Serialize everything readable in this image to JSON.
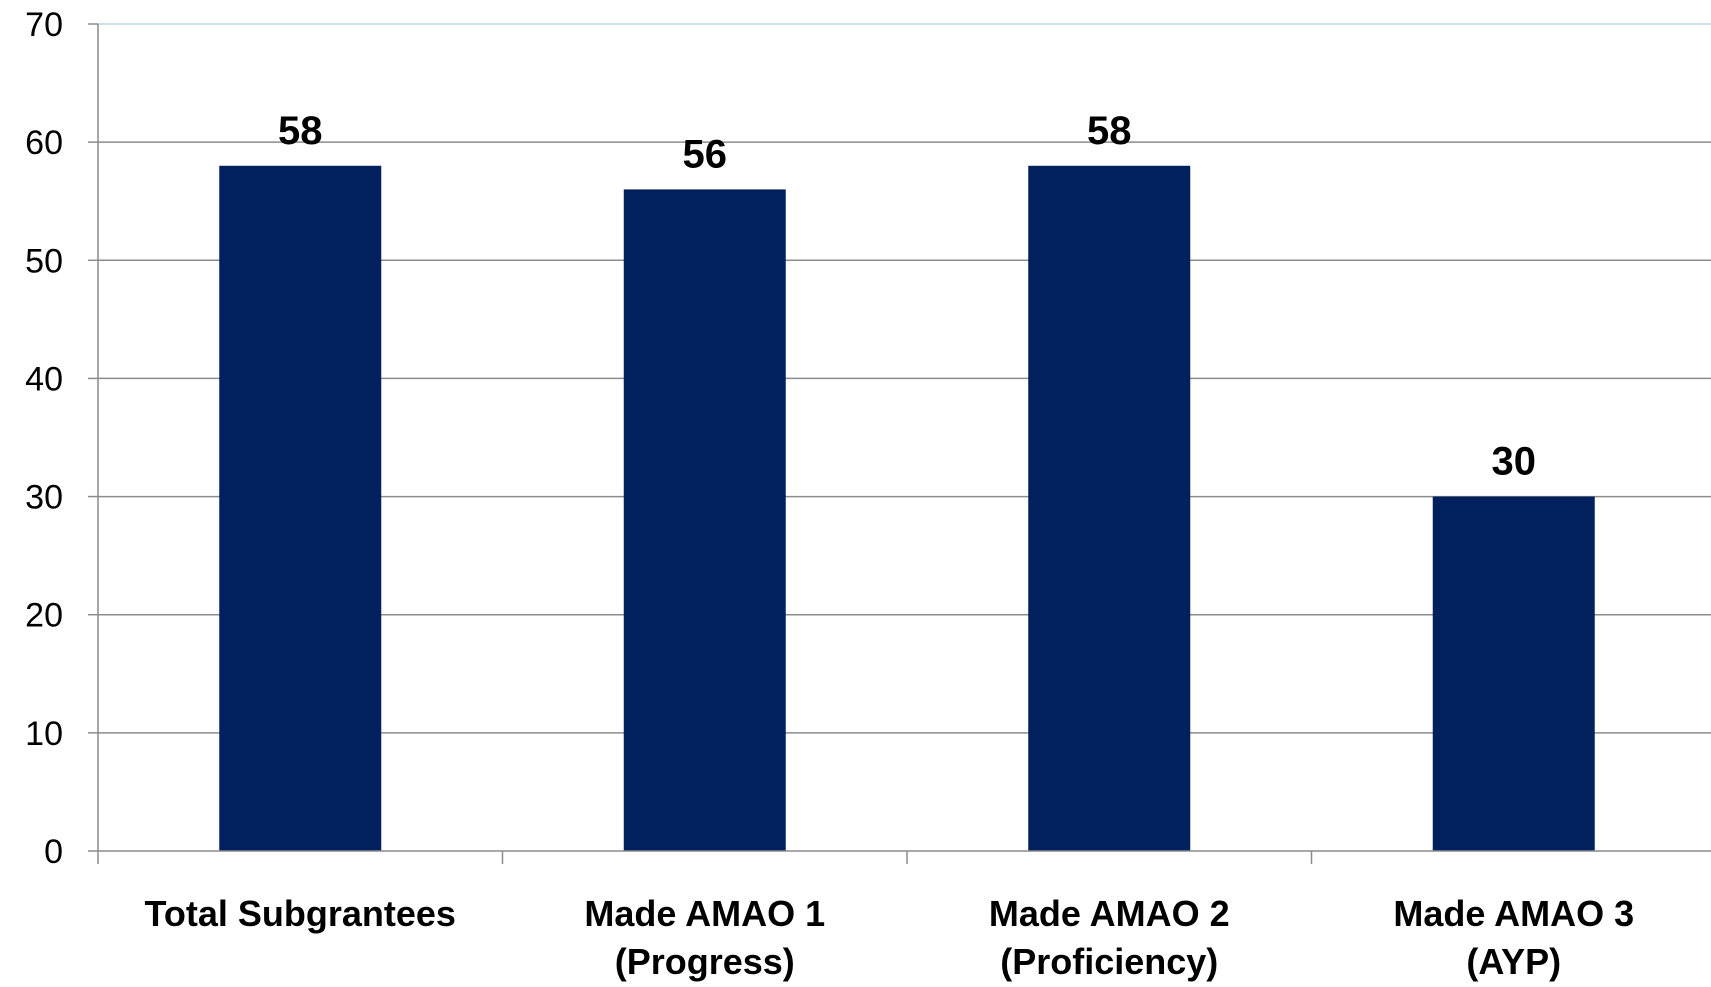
{
  "chart_data": {
    "type": "bar",
    "categories": [
      [
        "Total Subgrantees"
      ],
      [
        "Made AMAO 1",
        "(Progress)"
      ],
      [
        "Made AMAO 2",
        "(Proficiency)"
      ],
      [
        "Made AMAO 3",
        "(AYP)"
      ]
    ],
    "values": [
      58,
      56,
      58,
      30
    ],
    "data_labels": [
      "58",
      "56",
      "58",
      "30"
    ],
    "yticks": [
      "0",
      "10",
      "20",
      "30",
      "40",
      "50",
      "60",
      "70"
    ],
    "ylim": [
      0,
      70
    ],
    "grid": true,
    "legend": "none",
    "colors": {
      "bar": "#03205E",
      "grid": "#8C8C8C",
      "axis": "#8C8C8C",
      "top_line": "#C9E3E8"
    }
  }
}
